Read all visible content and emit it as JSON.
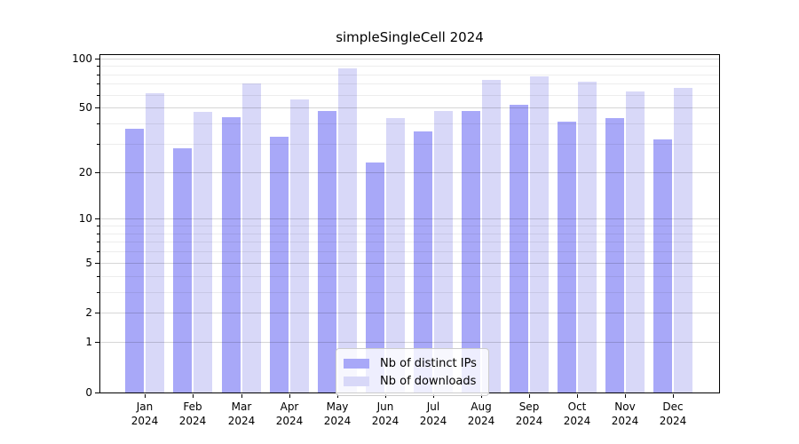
{
  "title": "simpleSingleCell 2024",
  "chart_data": {
    "type": "bar",
    "title": "simpleSingleCell 2024",
    "categories": [
      "Jan",
      "Feb",
      "Mar",
      "Apr",
      "May",
      "Jun",
      "Jul",
      "Aug",
      "Sep",
      "Oct",
      "Nov",
      "Dec"
    ],
    "year_label": "2024",
    "series": [
      {
        "key": "distinct-ips",
        "name": "Nb of distinct IPs",
        "color": "#a8a8f8",
        "values": [
          37,
          28,
          44,
          33,
          48,
          23,
          36,
          48,
          52,
          41,
          43,
          32
        ]
      },
      {
        "key": "downloads",
        "name": "Nb of downloads",
        "color": "#d8d8f8",
        "values": [
          61,
          47,
          70,
          56,
          87,
          43,
          48,
          74,
          78,
          72,
          63,
          66
        ]
      }
    ],
    "yscale": "log1p",
    "ylim": [
      0,
      106
    ],
    "yticks": [
      100,
      50,
      20,
      10,
      5,
      2,
      1,
      0
    ],
    "minor_yticks": [
      3,
      4,
      6,
      7,
      8,
      9,
      30,
      40,
      60,
      70,
      80,
      90
    ],
    "xlabel": "",
    "ylabel": "",
    "grid": true,
    "legend_position": "lower center inside"
  },
  "colors": {
    "bar_distinct_ips": "#a8a8f8",
    "bar_downloads": "#d8d8f8",
    "spine": "#000000",
    "major_grid": "#d6d6d6",
    "minor_grid": "#ededed",
    "legend_border": "#cccccc",
    "text": "#000000"
  }
}
